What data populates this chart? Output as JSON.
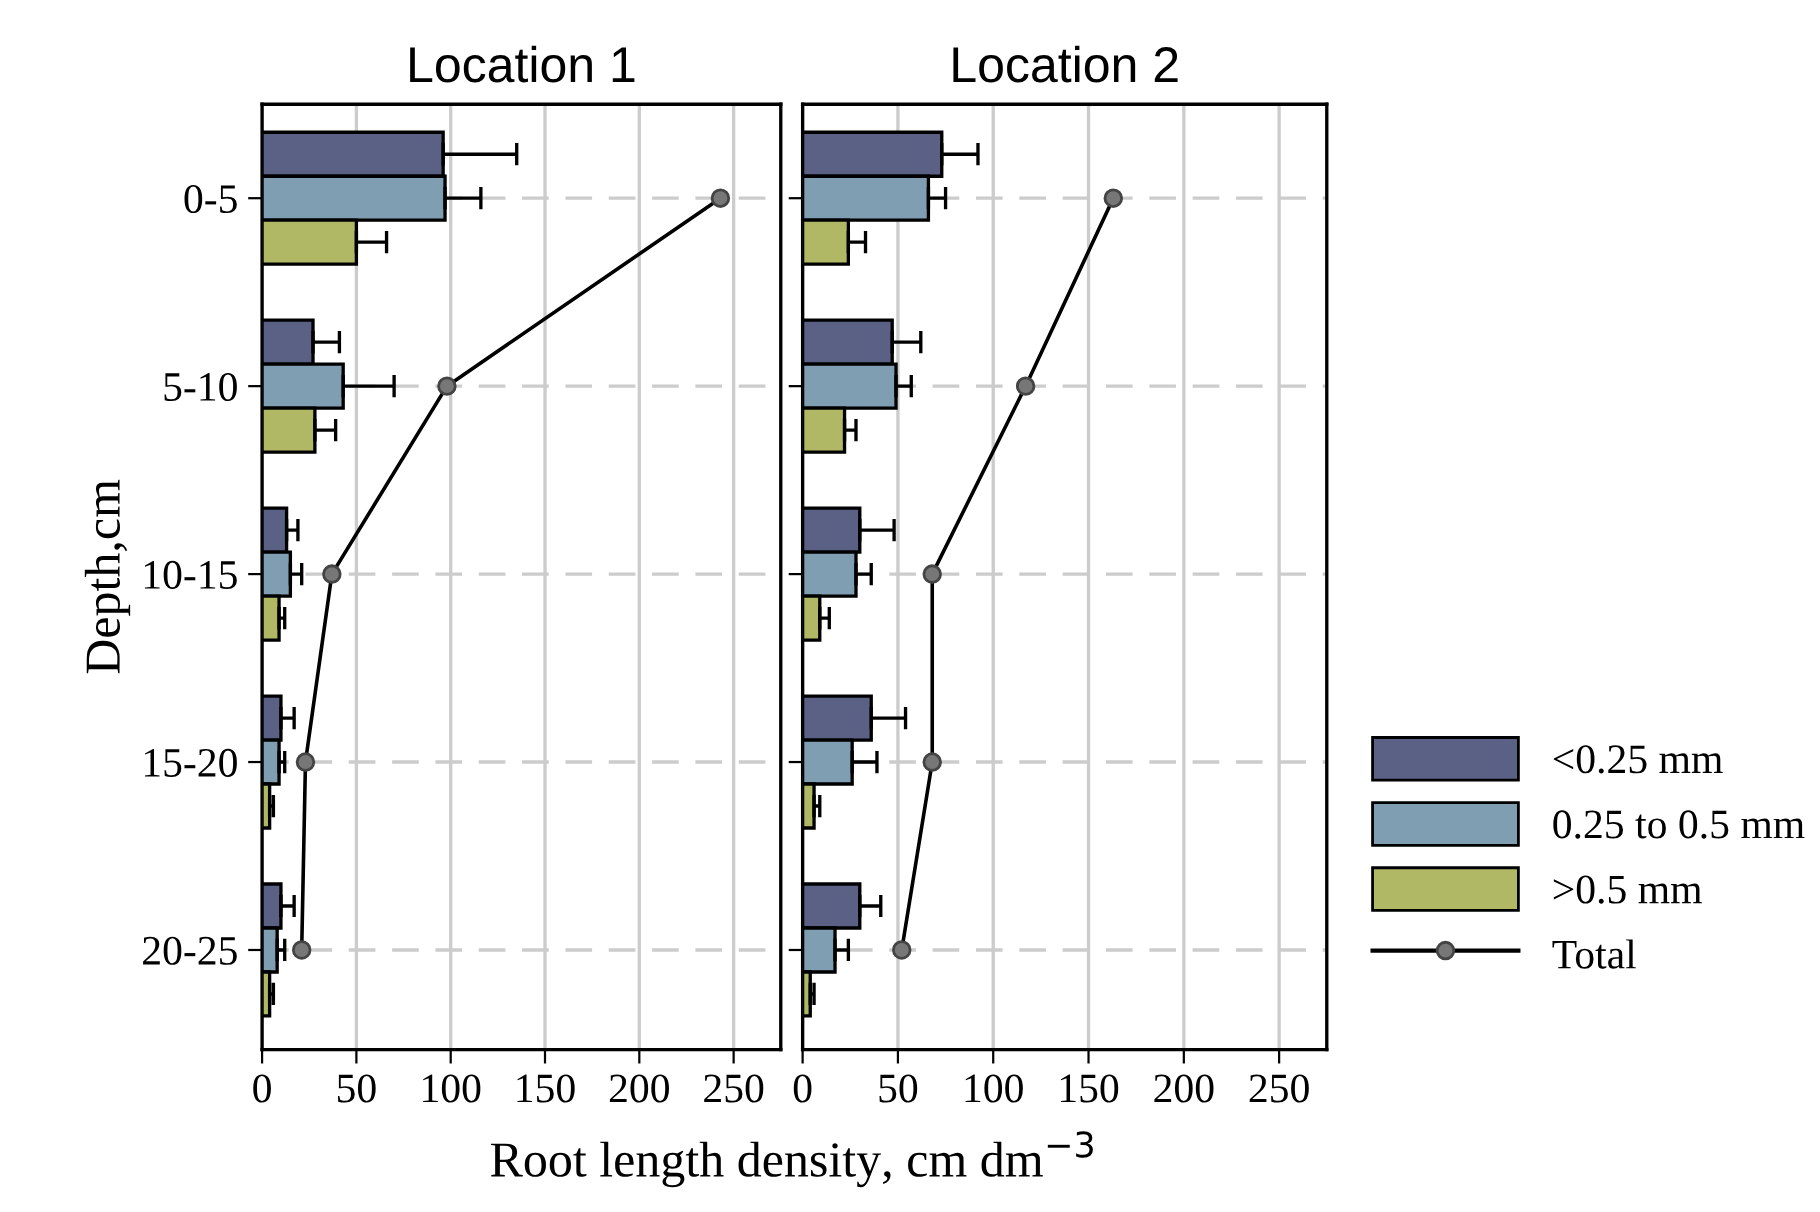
{
  "chart_data": [
    {
      "type": "bar",
      "orientation": "horizontal",
      "title": "Location 1",
      "ylabel": "Depth,cm",
      "xlabel": "Root length density, cm dm$^{−3}$",
      "categories": [
        "0-5",
        "5-10",
        "10-15",
        "15-20",
        "20-25"
      ],
      "xlim": [
        0,
        275
      ],
      "xticks": [
        0,
        50,
        100,
        150,
        200,
        250
      ],
      "grid": true,
      "legend": "right",
      "marker": "circle",
      "series": [
        {
          "name": "<0.25 mm",
          "color": "#5a6185",
          "values": [
            96,
            27,
            13,
            10,
            10
          ],
          "errors": [
            39,
            14,
            6,
            7,
            7
          ]
        },
        {
          "name": "0.25 to 0.5 mm",
          "color": "#7f9eb2",
          "values": [
            97,
            43,
            15,
            9,
            8
          ],
          "errors": [
            19,
            27,
            6,
            3,
            4
          ]
        },
        {
          "name": ">0.5 mm",
          "color": "#b1b865",
          "values": [
            50,
            28,
            9,
            4,
            4
          ],
          "errors": [
            16,
            11,
            3,
            2,
            2
          ]
        },
        {
          "name": "Total",
          "type": "line",
          "color": "#000000",
          "values": [
            243,
            98,
            37,
            23,
            21
          ]
        }
      ]
    },
    {
      "type": "bar",
      "orientation": "horizontal",
      "title": "Location 2",
      "tick_labels": "x",
      "categories": [
        null,
        null,
        null,
        null,
        null
      ],
      "xlim": [
        0,
        275
      ],
      "xticks": [
        0,
        50,
        100,
        150,
        200,
        250
      ],
      "grid": true,
      "marker": "circle",
      "series": [
        {
          "color": "#5a6185",
          "values": [
            73,
            47,
            30,
            36,
            30
          ],
          "errors": [
            19,
            15,
            18,
            18,
            11
          ]
        },
        {
          "color": "#7f9eb2",
          "values": [
            66,
            49,
            28,
            26,
            17
          ],
          "errors": [
            9,
            8,
            8,
            13,
            7
          ]
        },
        {
          "color": "#b1b865",
          "values": [
            24,
            22,
            9,
            6,
            4
          ],
          "errors": [
            9,
            6,
            5,
            3,
            2
          ]
        },
        {
          "type": "line",
          "color": "#000000",
          "values": [
            163,
            117,
            68,
            68,
            52
          ]
        }
      ]
    }
  ]
}
